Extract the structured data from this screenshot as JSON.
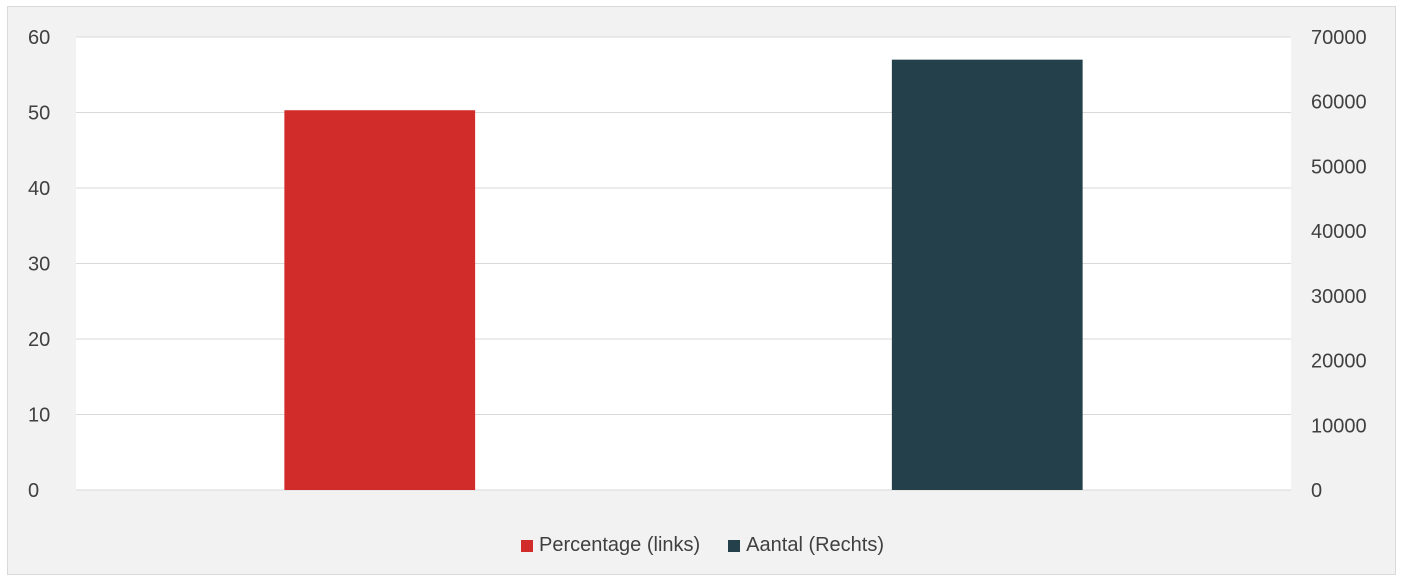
{
  "chart_data": {
    "type": "bar",
    "title": "",
    "categories": [
      "",
      ""
    ],
    "series": [
      {
        "name": "Percentage (links)",
        "axis": "left",
        "color": "#d22c2a",
        "values": [
          50.3,
          null
        ]
      },
      {
        "name": "Aantal (Rechts)",
        "axis": "right",
        "color": "#24414b",
        "values": [
          null,
          66500
        ]
      }
    ],
    "left_axis": {
      "min": 0,
      "max": 60,
      "ticks": [
        "0",
        "10",
        "20",
        "30",
        "40",
        "50",
        "60"
      ]
    },
    "right_axis": {
      "min": 0,
      "max": 70000,
      "ticks": [
        "0",
        "10000",
        "20000",
        "30000",
        "40000",
        "50000",
        "60000",
        "70000"
      ]
    },
    "grid": true,
    "legend_position": "bottom",
    "colors": {
      "background": "#f2f2f2",
      "plot_background": "#ffffff",
      "gridline": "#d9d9d9",
      "text": "#404040"
    }
  }
}
